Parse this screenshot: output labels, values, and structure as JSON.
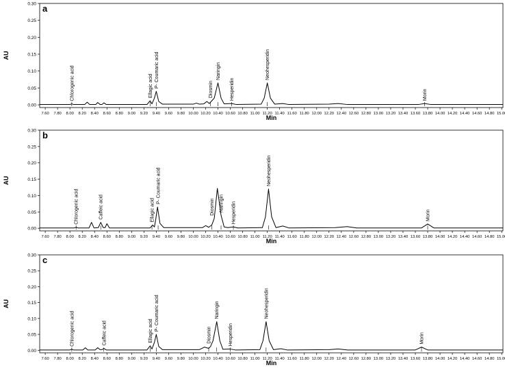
{
  "chart_data": [
    {
      "type": "line",
      "title": "a",
      "x_label": "Min",
      "y_label": "AU",
      "color": "#000000",
      "xlim": [
        7.51,
        15.02
      ],
      "ylim": [
        -0.008,
        0.3
      ],
      "xticks": [
        {
          "value": 7.6,
          "label": "7.60"
        },
        {
          "value": 7.8,
          "label": "7.80"
        },
        {
          "value": 8.0,
          "label": "8.00"
        },
        {
          "value": 8.2,
          "label": "8.20"
        },
        {
          "value": 8.4,
          "label": "8.40"
        },
        {
          "value": 8.6,
          "label": "8.60"
        },
        {
          "value": 8.8,
          "label": "8.80"
        },
        {
          "value": 9.0,
          "label": "9.00"
        },
        {
          "value": 9.2,
          "label": "9.20"
        },
        {
          "value": 9.4,
          "label": "9.40"
        },
        {
          "value": 9.6,
          "label": "9.60"
        },
        {
          "value": 9.8,
          "label": "9.80"
        },
        {
          "value": 10.0,
          "label": "10.00"
        },
        {
          "value": 10.2,
          "label": "10.20"
        },
        {
          "value": 10.4,
          "label": "10.40"
        },
        {
          "value": 10.6,
          "label": "10.60"
        },
        {
          "value": 10.8,
          "label": "10.80"
        },
        {
          "value": 11.0,
          "label": "11.00"
        },
        {
          "value": 11.2,
          "label": "11.20"
        },
        {
          "value": 11.4,
          "label": "11.40"
        },
        {
          "value": 11.6,
          "label": "11.60"
        },
        {
          "value": 11.8,
          "label": "11.80"
        },
        {
          "value": 12.0,
          "label": "12.00"
        },
        {
          "value": 12.2,
          "label": "12.20"
        },
        {
          "value": 12.4,
          "label": "12.40"
        },
        {
          "value": 12.6,
          "label": "12.60"
        },
        {
          "value": 12.8,
          "label": "12.80"
        },
        {
          "value": 13.0,
          "label": "13.00"
        },
        {
          "value": 13.2,
          "label": "13.20"
        },
        {
          "value": 13.4,
          "label": "13.40"
        },
        {
          "value": 13.6,
          "label": "13.60"
        },
        {
          "value": 13.8,
          "label": "13.80"
        },
        {
          "value": 14.0,
          "label": "14.00"
        },
        {
          "value": 14.2,
          "label": "14.20"
        },
        {
          "value": 14.4,
          "label": "14.40"
        },
        {
          "value": 14.6,
          "label": "14.60"
        },
        {
          "value": 14.8,
          "label": "14.80"
        },
        {
          "value": 15.0,
          "label": "15.00"
        }
      ],
      "yticks": [
        {
          "value": 0,
          "label": "0.00"
        },
        {
          "value": 0.05,
          "label": "0.05"
        },
        {
          "value": 0.1,
          "label": "0.10"
        },
        {
          "value": 0.15,
          "label": "0.15"
        },
        {
          "value": 0.2,
          "label": "0.20"
        },
        {
          "value": 0.25,
          "label": "0.25"
        },
        {
          "value": 0.3,
          "label": "0.30"
        }
      ],
      "x": [
        7.51,
        8.0,
        8.03,
        8.06,
        8.24,
        8.28,
        8.32,
        8.42,
        8.45,
        8.49,
        8.52,
        8.55,
        8.59,
        9.25,
        9.3,
        9.33,
        9.37,
        9.4,
        9.44,
        9.5,
        10.0,
        10.05,
        10.1,
        10.17,
        10.22,
        10.26,
        10.3,
        10.34,
        10.4,
        10.45,
        10.5,
        10.62,
        10.7,
        11.1,
        11.15,
        11.2,
        11.25,
        11.32,
        11.45,
        11.55,
        12.2,
        12.35,
        12.5,
        13.65,
        13.75,
        13.85,
        15.02
      ],
      "values": [
        0.001,
        0.001,
        0.003,
        0.001,
        0.001,
        0.008,
        0.001,
        0.001,
        0.007,
        0.001,
        0.001,
        0.006,
        0.001,
        0.001,
        0.012,
        0.003,
        0.02,
        0.04,
        0.01,
        0.002,
        0.002,
        0.005,
        0.002,
        0.003,
        0.01,
        0.004,
        0.012,
        0.02,
        0.065,
        0.02,
        0.003,
        0.004,
        0.001,
        0.002,
        0.02,
        0.065,
        0.02,
        0.002,
        0.004,
        0.001,
        0.002,
        0.004,
        0.001,
        0.001,
        0.004,
        0.001,
        0.001
      ],
      "annotations": [
        {
          "text": "Chlorogenic acid",
          "x": 8.03
        },
        {
          "text": "Ellagic acid",
          "x": 9.3
        },
        {
          "text": "P- Coumaric acid",
          "x": 9.4
        },
        {
          "text": "Diosmin",
          "x": 10.28
        },
        {
          "text": "Naringin",
          "x": 10.4
        },
        {
          "text": "Hesperidin",
          "x": 10.62
        },
        {
          "text": "Neohesperidin",
          "x": 11.2
        },
        {
          "text": "Morin",
          "x": 13.75
        }
      ]
    },
    {
      "type": "line",
      "title": "b",
      "x_label": "Min",
      "y_label": "AU",
      "color": "#000000",
      "xlim": [
        7.51,
        15.02
      ],
      "ylim": [
        -0.008,
        0.3
      ],
      "xticks": [
        {
          "value": 7.6,
          "label": "7.60"
        },
        {
          "value": 7.8,
          "label": "7.80"
        },
        {
          "value": 8.0,
          "label": "8.00"
        },
        {
          "value": 8.2,
          "label": "8.20"
        },
        {
          "value": 8.4,
          "label": "8.40"
        },
        {
          "value": 8.6,
          "label": "8.60"
        },
        {
          "value": 8.8,
          "label": "8.80"
        },
        {
          "value": 9.0,
          "label": "9.00"
        },
        {
          "value": 9.2,
          "label": "9.20"
        },
        {
          "value": 9.4,
          "label": "9.40"
        },
        {
          "value": 9.6,
          "label": "9.60"
        },
        {
          "value": 9.8,
          "label": "9.80"
        },
        {
          "value": 10.0,
          "label": "10.00"
        },
        {
          "value": 10.2,
          "label": "10.20"
        },
        {
          "value": 10.4,
          "label": "10.40"
        },
        {
          "value": 10.6,
          "label": "10.60"
        },
        {
          "value": 10.8,
          "label": "10.80"
        },
        {
          "value": 11.0,
          "label": "11.00"
        },
        {
          "value": 11.2,
          "label": "11.20"
        },
        {
          "value": 11.4,
          "label": "11.40"
        },
        {
          "value": 11.6,
          "label": "11.60"
        },
        {
          "value": 11.8,
          "label": "11.80"
        },
        {
          "value": 12.0,
          "label": "12.00"
        },
        {
          "value": 12.2,
          "label": "12.20"
        },
        {
          "value": 12.4,
          "label": "12.40"
        },
        {
          "value": 12.6,
          "label": "12.60"
        },
        {
          "value": 12.8,
          "label": "12.80"
        },
        {
          "value": 13.0,
          "label": "13.00"
        },
        {
          "value": 13.2,
          "label": "13.20"
        },
        {
          "value": 13.4,
          "label": "13.40"
        },
        {
          "value": 13.6,
          "label": "13.60"
        },
        {
          "value": 13.8,
          "label": "13.80"
        },
        {
          "value": 14.0,
          "label": "14.00"
        },
        {
          "value": 14.2,
          "label": "14.20"
        },
        {
          "value": 14.4,
          "label": "14.40"
        },
        {
          "value": 14.6,
          "label": "14.60"
        },
        {
          "value": 14.8,
          "label": "14.80"
        },
        {
          "value": 15.0,
          "label": "15.00"
        }
      ],
      "yticks": [
        {
          "value": 0,
          "label": "0.00"
        },
        {
          "value": 0.05,
          "label": "0.05"
        },
        {
          "value": 0.1,
          "label": "0.10"
        },
        {
          "value": 0.15,
          "label": "0.15"
        },
        {
          "value": 0.2,
          "label": "0.20"
        },
        {
          "value": 0.25,
          "label": "0.25"
        },
        {
          "value": 0.3,
          "label": "0.30"
        }
      ],
      "x": [
        7.51,
        8.07,
        8.1,
        8.13,
        8.31,
        8.35,
        8.39,
        8.46,
        8.5,
        8.54,
        8.57,
        8.6,
        8.64,
        9.3,
        9.34,
        9.37,
        9.39,
        9.42,
        9.46,
        9.52,
        10.15,
        10.2,
        10.25,
        10.3,
        10.34,
        10.39,
        10.45,
        10.5,
        10.56,
        10.65,
        10.72,
        11.12,
        11.17,
        11.22,
        11.27,
        11.34,
        11.45,
        11.55,
        12.3,
        12.5,
        12.65,
        13.7,
        13.8,
        13.9,
        15.02
      ],
      "values": [
        0.001,
        0.001,
        0.003,
        0.001,
        0.001,
        0.018,
        0.001,
        0.002,
        0.018,
        0.002,
        0.002,
        0.014,
        0.001,
        0.001,
        0.01,
        0.004,
        0.025,
        0.065,
        0.015,
        0.002,
        0.002,
        0.008,
        0.003,
        0.01,
        0.03,
        0.122,
        0.04,
        0.004,
        0.002,
        0.004,
        0.001,
        0.002,
        0.035,
        0.12,
        0.035,
        0.002,
        0.007,
        0.001,
        0.002,
        0.005,
        0.001,
        0.001,
        0.013,
        0.001,
        0.001
      ],
      "annotations": [
        {
          "text": "Chlorogenic acid",
          "x": 8.1
        },
        {
          "text": "Caffeic acid",
          "x": 8.5
        },
        {
          "text": "Ellagic acid",
          "x": 9.33
        },
        {
          "text": "P- Coumaric acid",
          "x": 9.43
        },
        {
          "text": "Diosmin",
          "x": 10.3
        },
        {
          "text": "Naringin",
          "x": 10.45
        },
        {
          "text": "Hesperidin",
          "x": 10.65
        },
        {
          "text": "Neohesperidin",
          "x": 11.22
        },
        {
          "text": "Morin",
          "x": 13.8
        }
      ]
    },
    {
      "type": "line",
      "title": "c",
      "x_label": "Min",
      "y_label": "AU",
      "color": "#000000",
      "xlim": [
        7.51,
        15.02
      ],
      "ylim": [
        -0.008,
        0.3
      ],
      "xticks": [
        {
          "value": 7.6,
          "label": "7.60"
        },
        {
          "value": 7.8,
          "label": "7.80"
        },
        {
          "value": 8.0,
          "label": "8.00"
        },
        {
          "value": 8.2,
          "label": "8.20"
        },
        {
          "value": 8.4,
          "label": "8.40"
        },
        {
          "value": 8.6,
          "label": "8.60"
        },
        {
          "value": 8.8,
          "label": "8.80"
        },
        {
          "value": 9.0,
          "label": "9.00"
        },
        {
          "value": 9.2,
          "label": "9.20"
        },
        {
          "value": 9.4,
          "label": "9.40"
        },
        {
          "value": 9.6,
          "label": "9.60"
        },
        {
          "value": 9.8,
          "label": "9.80"
        },
        {
          "value": 10.0,
          "label": "10.00"
        },
        {
          "value": 10.2,
          "label": "10.20"
        },
        {
          "value": 10.4,
          "label": "10.40"
        },
        {
          "value": 10.6,
          "label": "10.60"
        },
        {
          "value": 10.8,
          "label": "10.80"
        },
        {
          "value": 11.0,
          "label": "11.00"
        },
        {
          "value": 11.2,
          "label": "11.20"
        },
        {
          "value": 11.4,
          "label": "11.40"
        },
        {
          "value": 11.6,
          "label": "11.60"
        },
        {
          "value": 11.8,
          "label": "11.80"
        },
        {
          "value": 12.0,
          "label": "12.00"
        },
        {
          "value": 12.2,
          "label": "12.20"
        },
        {
          "value": 12.4,
          "label": "12.40"
        },
        {
          "value": 12.6,
          "label": "12.60"
        },
        {
          "value": 12.8,
          "label": "12.80"
        },
        {
          "value": 13.0,
          "label": "13.00"
        },
        {
          "value": 13.2,
          "label": "13.20"
        },
        {
          "value": 13.4,
          "label": "13.40"
        },
        {
          "value": 13.6,
          "label": "13.60"
        },
        {
          "value": 13.8,
          "label": "13.80"
        },
        {
          "value": 14.0,
          "label": "14.00"
        },
        {
          "value": 14.2,
          "label": "14.20"
        },
        {
          "value": 14.4,
          "label": "14.40"
        },
        {
          "value": 14.6,
          "label": "14.60"
        },
        {
          "value": 14.8,
          "label": "14.80"
        },
        {
          "value": 15.0,
          "label": "15.00"
        }
      ],
      "yticks": [
        {
          "value": 0,
          "label": "0.00"
        },
        {
          "value": 0.05,
          "label": "0.05"
        },
        {
          "value": 0.1,
          "label": "0.10"
        },
        {
          "value": 0.15,
          "label": "0.15"
        },
        {
          "value": 0.2,
          "label": "0.20"
        },
        {
          "value": 0.25,
          "label": "0.25"
        },
        {
          "value": 0.3,
          "label": "0.30"
        }
      ],
      "x": [
        7.51,
        8.0,
        8.03,
        8.06,
        8.21,
        8.25,
        8.29,
        8.41,
        8.45,
        8.49,
        8.52,
        8.55,
        8.59,
        9.25,
        9.3,
        9.33,
        9.37,
        9.4,
        9.44,
        9.5,
        10.1,
        10.18,
        10.25,
        10.28,
        10.32,
        10.38,
        10.43,
        10.48,
        10.6,
        10.68,
        11.08,
        11.13,
        11.18,
        11.23,
        11.3,
        11.42,
        11.52,
        12.2,
        12.35,
        12.5,
        13.6,
        13.7,
        13.8,
        15.02
      ],
      "values": [
        0.001,
        0.001,
        0.003,
        0.001,
        0.001,
        0.008,
        0.001,
        0.001,
        0.008,
        0.002,
        0.002,
        0.006,
        0.001,
        0.001,
        0.014,
        0.004,
        0.025,
        0.05,
        0.012,
        0.002,
        0.002,
        0.01,
        0.006,
        0.012,
        0.03,
        0.09,
        0.03,
        0.003,
        0.004,
        0.001,
        0.002,
        0.03,
        0.09,
        0.03,
        0.002,
        0.005,
        0.001,
        0.002,
        0.004,
        0.001,
        0.001,
        0.01,
        0.001,
        0.001
      ],
      "annotations": [
        {
          "text": "Chlorogenic acid",
          "x": 8.03
        },
        {
          "text": "Caffeic acid",
          "x": 8.55
        },
        {
          "text": "Ellagic acid",
          "x": 9.3
        },
        {
          "text": "P- Coumaric acid",
          "x": 9.4
        },
        {
          "text": "Diosmin",
          "x": 10.25
        },
        {
          "text": "Naringin",
          "x": 10.38
        },
        {
          "text": "Hesperidin",
          "x": 10.6
        },
        {
          "text": "Neohesperidin",
          "x": 11.18
        },
        {
          "text": "Morin",
          "x": 13.7
        }
      ]
    }
  ]
}
